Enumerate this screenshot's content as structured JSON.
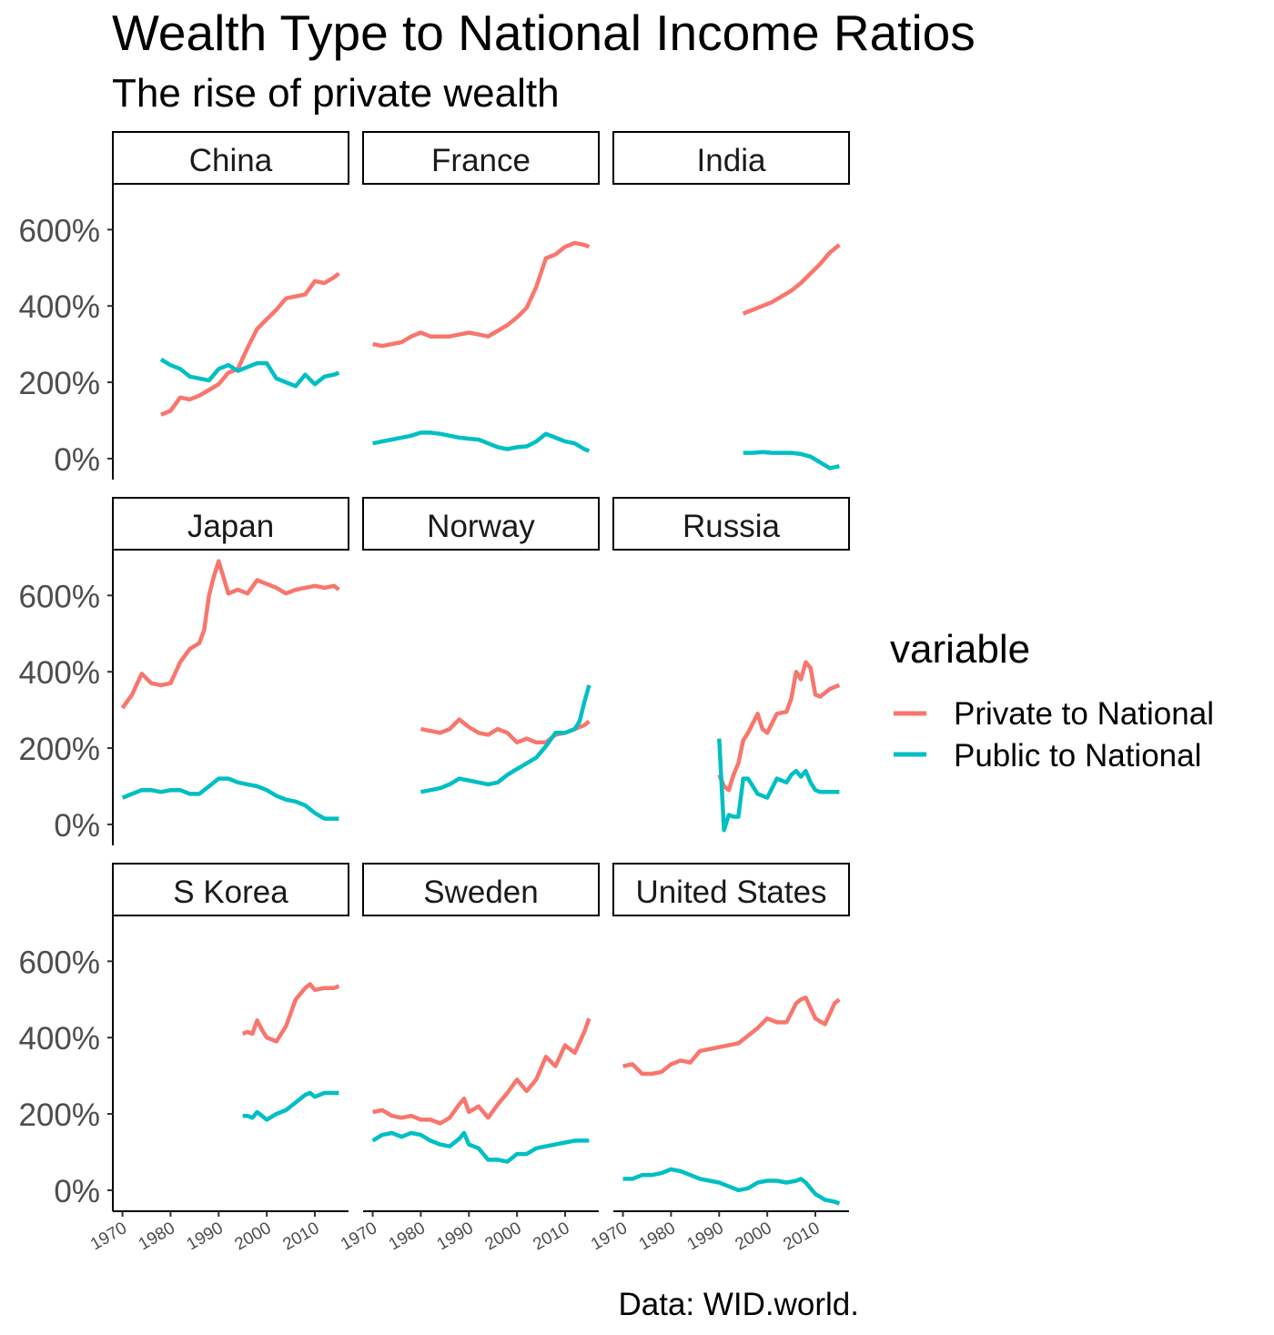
{
  "chart_data": {
    "type": "line",
    "title": "Wealth Type to National Income Ratios",
    "subtitle": "The rise of private wealth",
    "caption": "Data: WID.world.",
    "legend": {
      "title": "variable",
      "position": "right",
      "entries": [
        "Private to National",
        "Public to National"
      ]
    },
    "xlim": [
      1968,
      2017
    ],
    "ylim": [
      -55,
      720
    ],
    "x_ticks": [
      1970,
      1980,
      1990,
      2000,
      2010
    ],
    "y_ticks": [
      0,
      200,
      400,
      600
    ],
    "y_tick_labels": [
      "0%",
      "200%",
      "400%",
      "600%"
    ],
    "grid": false,
    "colors": {
      "Private to National": "#F8766D",
      "Public to National": "#00BFC4"
    },
    "facets": [
      {
        "name": "China",
        "series": [
          {
            "name": "Private to National",
            "x": [
              1978,
              1980,
              1982,
              1984,
              1986,
              1988,
              1990,
              1992,
              1994,
              1996,
              1998,
              2000,
              2002,
              2004,
              2006,
              2008,
              2010,
              2012,
              2014,
              2015
            ],
            "values": [
              115,
              125,
              160,
              155,
              165,
              180,
              195,
              225,
              235,
              290,
              340,
              365,
              390,
              420,
              425,
              430,
              465,
              460,
              475,
              485
            ]
          },
          {
            "name": "Public to National",
            "x": [
              1978,
              1980,
              1982,
              1984,
              1986,
              1988,
              1990,
              1992,
              1994,
              1996,
              1998,
              2000,
              2002,
              2004,
              2006,
              2008,
              2010,
              2012,
              2014,
              2015
            ],
            "values": [
              260,
              245,
              235,
              215,
              210,
              205,
              235,
              245,
              230,
              240,
              250,
              250,
              210,
              200,
              190,
              220,
              195,
              215,
              220,
              225
            ]
          }
        ]
      },
      {
        "name": "France",
        "series": [
          {
            "name": "Private to National",
            "x": [
              1970,
              1972,
              1974,
              1976,
              1978,
              1980,
              1982,
              1984,
              1986,
              1988,
              1990,
              1992,
              1994,
              1996,
              1998,
              2000,
              2002,
              2004,
              2006,
              2008,
              2010,
              2012,
              2014,
              2015
            ],
            "values": [
              300,
              295,
              300,
              305,
              320,
              330,
              320,
              320,
              320,
              325,
              330,
              325,
              320,
              335,
              350,
              370,
              395,
              450,
              525,
              535,
              555,
              565,
              560,
              555
            ]
          },
          {
            "name": "Public to National",
            "x": [
              1970,
              1972,
              1974,
              1976,
              1978,
              1980,
              1982,
              1984,
              1986,
              1988,
              1990,
              1992,
              1994,
              1996,
              1998,
              2000,
              2002,
              2004,
              2006,
              2008,
              2010,
              2012,
              2014,
              2015
            ],
            "values": [
              40,
              45,
              50,
              55,
              60,
              68,
              68,
              65,
              60,
              55,
              52,
              50,
              40,
              30,
              25,
              30,
              32,
              45,
              65,
              55,
              45,
              40,
              25,
              20
            ]
          }
        ]
      },
      {
        "name": "India",
        "series": [
          {
            "name": "Private to National",
            "x": [
              1995,
              1997,
              1999,
              2001,
              2003,
              2005,
              2007,
              2009,
              2011,
              2013,
              2015
            ],
            "values": [
              380,
              390,
              400,
              410,
              425,
              440,
              460,
              485,
              510,
              540,
              560
            ]
          },
          {
            "name": "Public to National",
            "x": [
              1995,
              1997,
              1999,
              2001,
              2003,
              2005,
              2007,
              2009,
              2011,
              2013,
              2015
            ],
            "values": [
              15,
              15,
              17,
              15,
              15,
              15,
              12,
              5,
              -10,
              -25,
              -20
            ]
          }
        ]
      },
      {
        "name": "Japan",
        "series": [
          {
            "name": "Private to National",
            "x": [
              1970,
              1972,
              1974,
              1976,
              1978,
              1980,
              1982,
              1984,
              1986,
              1987,
              1988,
              1989,
              1990,
              1992,
              1994,
              1996,
              1998,
              2000,
              2002,
              2004,
              2006,
              2008,
              2010,
              2012,
              2014,
              2015
            ],
            "values": [
              305,
              340,
              395,
              370,
              365,
              370,
              425,
              460,
              475,
              510,
              600,
              650,
              690,
              605,
              615,
              605,
              640,
              630,
              620,
              605,
              615,
              620,
              625,
              620,
              625,
              615
            ]
          },
          {
            "name": "Public to National",
            "x": [
              1970,
              1972,
              1974,
              1976,
              1978,
              1980,
              1982,
              1984,
              1986,
              1988,
              1990,
              1992,
              1994,
              1996,
              1998,
              2000,
              2002,
              2004,
              2006,
              2008,
              2010,
              2012,
              2014,
              2015
            ],
            "values": [
              70,
              80,
              90,
              90,
              85,
              90,
              90,
              80,
              80,
              100,
              120,
              120,
              110,
              105,
              100,
              90,
              75,
              65,
              60,
              50,
              30,
              15,
              15,
              15
            ]
          }
        ]
      },
      {
        "name": "Norway",
        "series": [
          {
            "name": "Private to National",
            "x": [
              1980,
              1982,
              1984,
              1986,
              1988,
              1990,
              1992,
              1994,
              1996,
              1998,
              2000,
              2002,
              2004,
              2006,
              2008,
              2010,
              2012,
              2014,
              2015
            ],
            "values": [
              250,
              245,
              240,
              250,
              275,
              255,
              240,
              235,
              250,
              240,
              215,
              225,
              215,
              215,
              235,
              240,
              250,
              260,
              270
            ]
          },
          {
            "name": "Public to National",
            "x": [
              1980,
              1982,
              1984,
              1986,
              1988,
              1990,
              1992,
              1994,
              1996,
              1998,
              2000,
              2002,
              2004,
              2006,
              2008,
              2010,
              2012,
              2013,
              2014,
              2015
            ],
            "values": [
              85,
              90,
              95,
              105,
              120,
              115,
              110,
              105,
              110,
              130,
              145,
              160,
              175,
              205,
              240,
              240,
              250,
              270,
              320,
              365
            ]
          }
        ]
      },
      {
        "name": "Russia",
        "series": [
          {
            "name": "Private to National",
            "x": [
              1990,
              1991,
              1992,
              1993,
              1994,
              1995,
              1996,
              1998,
              1999,
              2000,
              2002,
              2004,
              2005,
              2006,
              2007,
              2008,
              2009,
              2010,
              2011,
              2012,
              2013,
              2014,
              2015
            ],
            "values": [
              130,
              100,
              90,
              130,
              160,
              220,
              240,
              290,
              250,
              240,
              290,
              295,
              330,
              400,
              380,
              425,
              410,
              340,
              335,
              345,
              355,
              360,
              365
            ]
          },
          {
            "name": "Public to National",
            "x": [
              1990,
              1991,
              1992,
              1993,
              1994,
              1995,
              1996,
              1998,
              1999,
              2000,
              2002,
              2004,
              2005,
              2006,
              2007,
              2008,
              2009,
              2010,
              2011,
              2012,
              2013,
              2014,
              2015
            ],
            "values": [
              225,
              -15,
              25,
              20,
              20,
              120,
              120,
              80,
              75,
              70,
              120,
              110,
              130,
              140,
              125,
              140,
              110,
              90,
              85,
              85,
              85,
              85,
              85
            ]
          }
        ]
      },
      {
        "name": "S Korea",
        "series": [
          {
            "name": "Private to National",
            "x": [
              1995,
              1996,
              1997,
              1998,
              1999,
              2000,
              2002,
              2004,
              2006,
              2008,
              2009,
              2010,
              2012,
              2014,
              2015
            ],
            "values": [
              410,
              415,
              410,
              445,
              420,
              400,
              390,
              430,
              500,
              530,
              540,
              525,
              530,
              530,
              535
            ]
          },
          {
            "name": "Public to National",
            "x": [
              1995,
              1996,
              1997,
              1998,
              1999,
              2000,
              2002,
              2004,
              2006,
              2008,
              2009,
              2010,
              2012,
              2014,
              2015
            ],
            "values": [
              195,
              195,
              190,
              205,
              195,
              185,
              200,
              210,
              230,
              250,
              255,
              245,
              255,
              255,
              255
            ]
          }
        ]
      },
      {
        "name": "Sweden",
        "series": [
          {
            "name": "Private to National",
            "x": [
              1970,
              1972,
              1974,
              1976,
              1978,
              1980,
              1982,
              1984,
              1986,
              1988,
              1989,
              1990,
              1992,
              1994,
              1996,
              1998,
              2000,
              2002,
              2004,
              2006,
              2008,
              2010,
              2012,
              2014,
              2015
            ],
            "values": [
              205,
              210,
              195,
              190,
              195,
              185,
              185,
              175,
              190,
              225,
              240,
              205,
              220,
              190,
              225,
              255,
              290,
              260,
              290,
              350,
              325,
              380,
              360,
              415,
              450
            ]
          },
          {
            "name": "Public to National",
            "x": [
              1970,
              1972,
              1974,
              1976,
              1978,
              1980,
              1982,
              1984,
              1986,
              1988,
              1989,
              1990,
              1992,
              1994,
              1996,
              1998,
              2000,
              2002,
              2004,
              2006,
              2008,
              2010,
              2012,
              2014,
              2015
            ],
            "values": [
              130,
              145,
              150,
              140,
              150,
              145,
              130,
              120,
              115,
              135,
              150,
              120,
              110,
              80,
              80,
              75,
              95,
              95,
              110,
              115,
              120,
              125,
              130,
              130,
              130
            ]
          }
        ]
      },
      {
        "name": "United States",
        "series": [
          {
            "name": "Private to National",
            "x": [
              1970,
              1972,
              1974,
              1976,
              1978,
              1980,
              1982,
              1984,
              1986,
              1988,
              1990,
              1992,
              1994,
              1996,
              1998,
              2000,
              2002,
              2004,
              2006,
              2007,
              2008,
              2010,
              2012,
              2014,
              2015
            ],
            "values": [
              325,
              330,
              305,
              305,
              310,
              330,
              340,
              335,
              365,
              370,
              375,
              380,
              385,
              405,
              425,
              450,
              440,
              440,
              490,
              500,
              505,
              450,
              435,
              490,
              500
            ]
          },
          {
            "name": "Public to National",
            "x": [
              1970,
              1972,
              1974,
              1976,
              1978,
              1980,
              1982,
              1984,
              1986,
              1988,
              1990,
              1992,
              1994,
              1996,
              1998,
              2000,
              2002,
              2004,
              2006,
              2007,
              2008,
              2010,
              2012,
              2014,
              2015
            ],
            "values": [
              30,
              30,
              40,
              40,
              45,
              55,
              50,
              40,
              30,
              25,
              20,
              10,
              0,
              5,
              20,
              25,
              25,
              20,
              25,
              30,
              20,
              -10,
              -25,
              -30,
              -35
            ]
          }
        ]
      }
    ]
  }
}
